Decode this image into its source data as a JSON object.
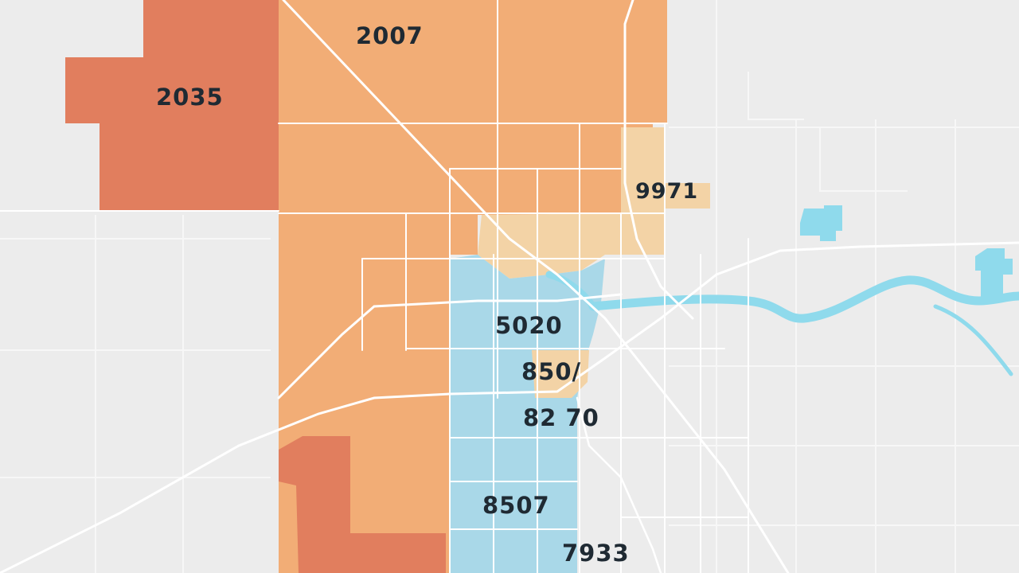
{
  "map": {
    "colors": {
      "background": "#ececec",
      "zone_dark_orange": "#e17e5e",
      "zone_orange": "#f2ad76",
      "zone_light": "#f3d3a6",
      "zone_blue": "#a9d8e8",
      "water": "#8fdaec",
      "road": "#ffffff",
      "label_text": "#1f2a33"
    },
    "region_labels": [
      {
        "id": "2007",
        "text": "2007"
      },
      {
        "id": "2035",
        "text": "2035"
      },
      {
        "id": "9971",
        "text": "9971"
      },
      {
        "id": "5020",
        "text": "5020"
      },
      {
        "id": "8507",
        "text": "850/"
      },
      {
        "id": "8270",
        "text": "82 70"
      },
      {
        "id": "8507b",
        "text": "8507"
      },
      {
        "id": "7933",
        "text": "7933"
      }
    ]
  }
}
